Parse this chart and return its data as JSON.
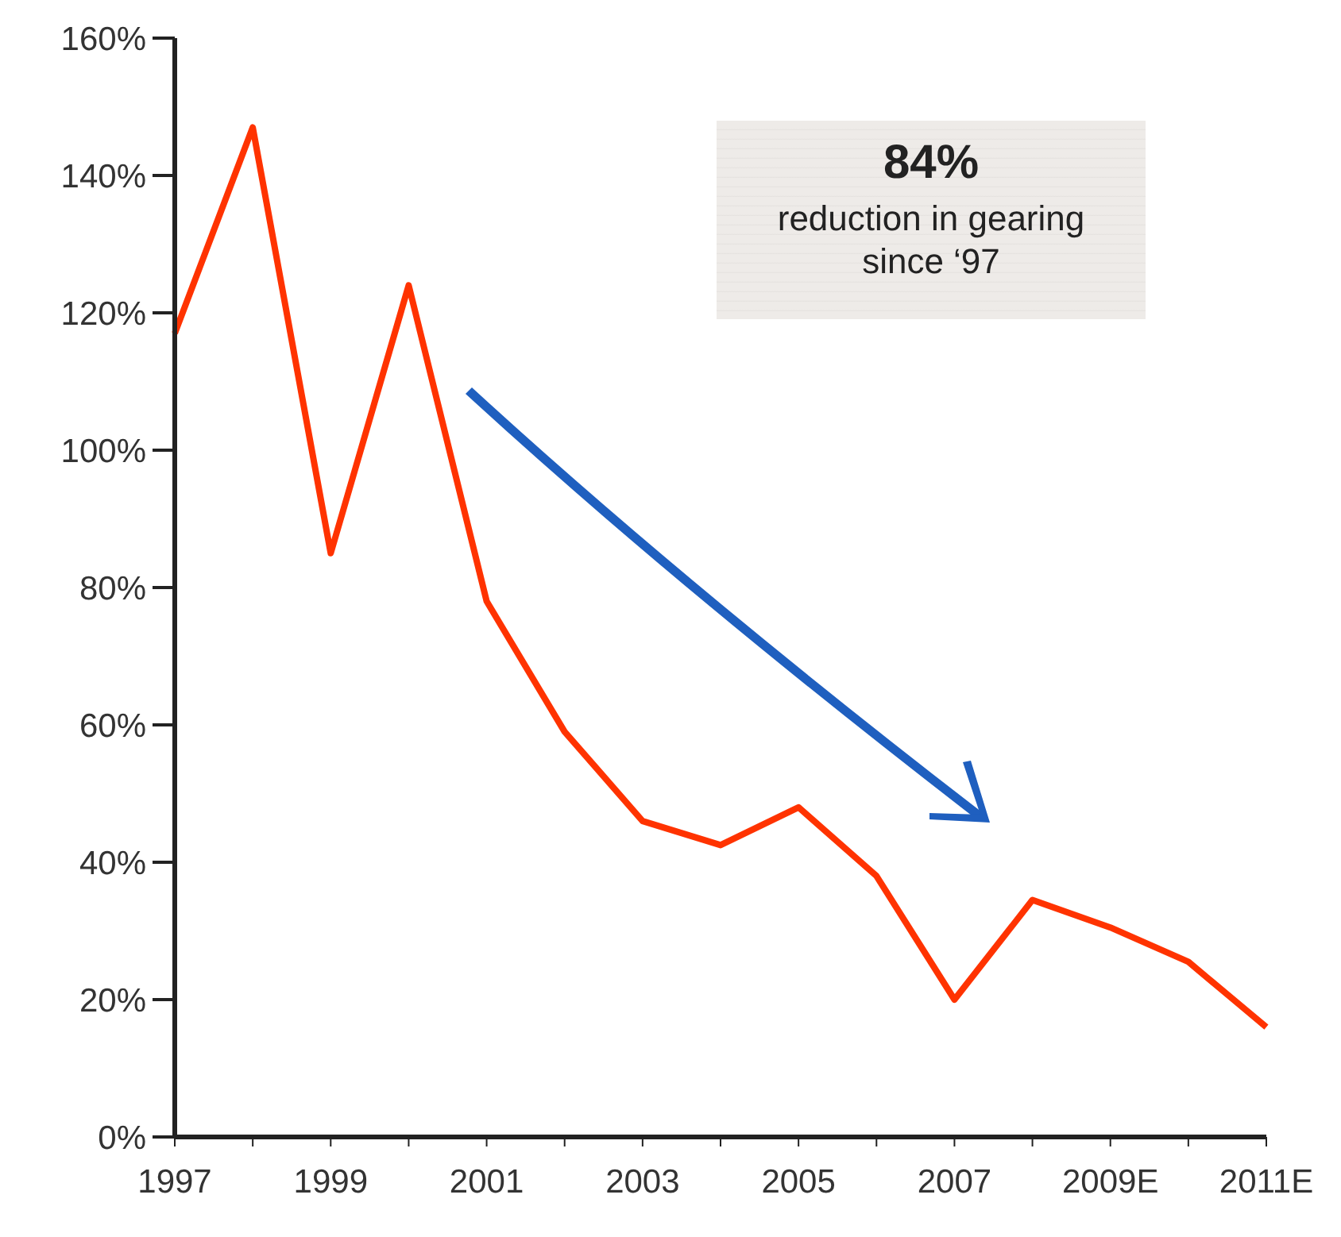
{
  "chart_data": {
    "type": "line",
    "categories": [
      "1997",
      null,
      "1999",
      null,
      "2001",
      null,
      "2003",
      null,
      "2005",
      null,
      "2007",
      null,
      "2009E",
      null,
      "2011E"
    ],
    "series": [
      {
        "color": "#ff3300",
        "values": [
          117,
          147,
          85,
          124,
          78,
          59,
          46,
          42.5,
          48,
          38,
          20,
          34.5,
          30.5,
          25.5,
          16
        ]
      }
    ],
    "ylim": [
      0,
      160
    ],
    "yticks": [
      {
        "value": 0,
        "label": "0%"
      },
      {
        "value": 20,
        "label": "20%"
      },
      {
        "value": 40,
        "label": "40%"
      },
      {
        "value": 60,
        "label": "60%"
      },
      {
        "value": 80,
        "label": "80%"
      },
      {
        "value": 100,
        "label": "100%"
      },
      {
        "value": 120,
        "label": "120%"
      },
      {
        "value": 140,
        "label": "140%"
      },
      {
        "value": 160,
        "label": "160%"
      }
    ],
    "grid": false,
    "legend": false,
    "marker": "none",
    "line_style": "solid",
    "annotations": [
      "84%",
      "reduction in gearing since ‘97"
    ]
  }
}
